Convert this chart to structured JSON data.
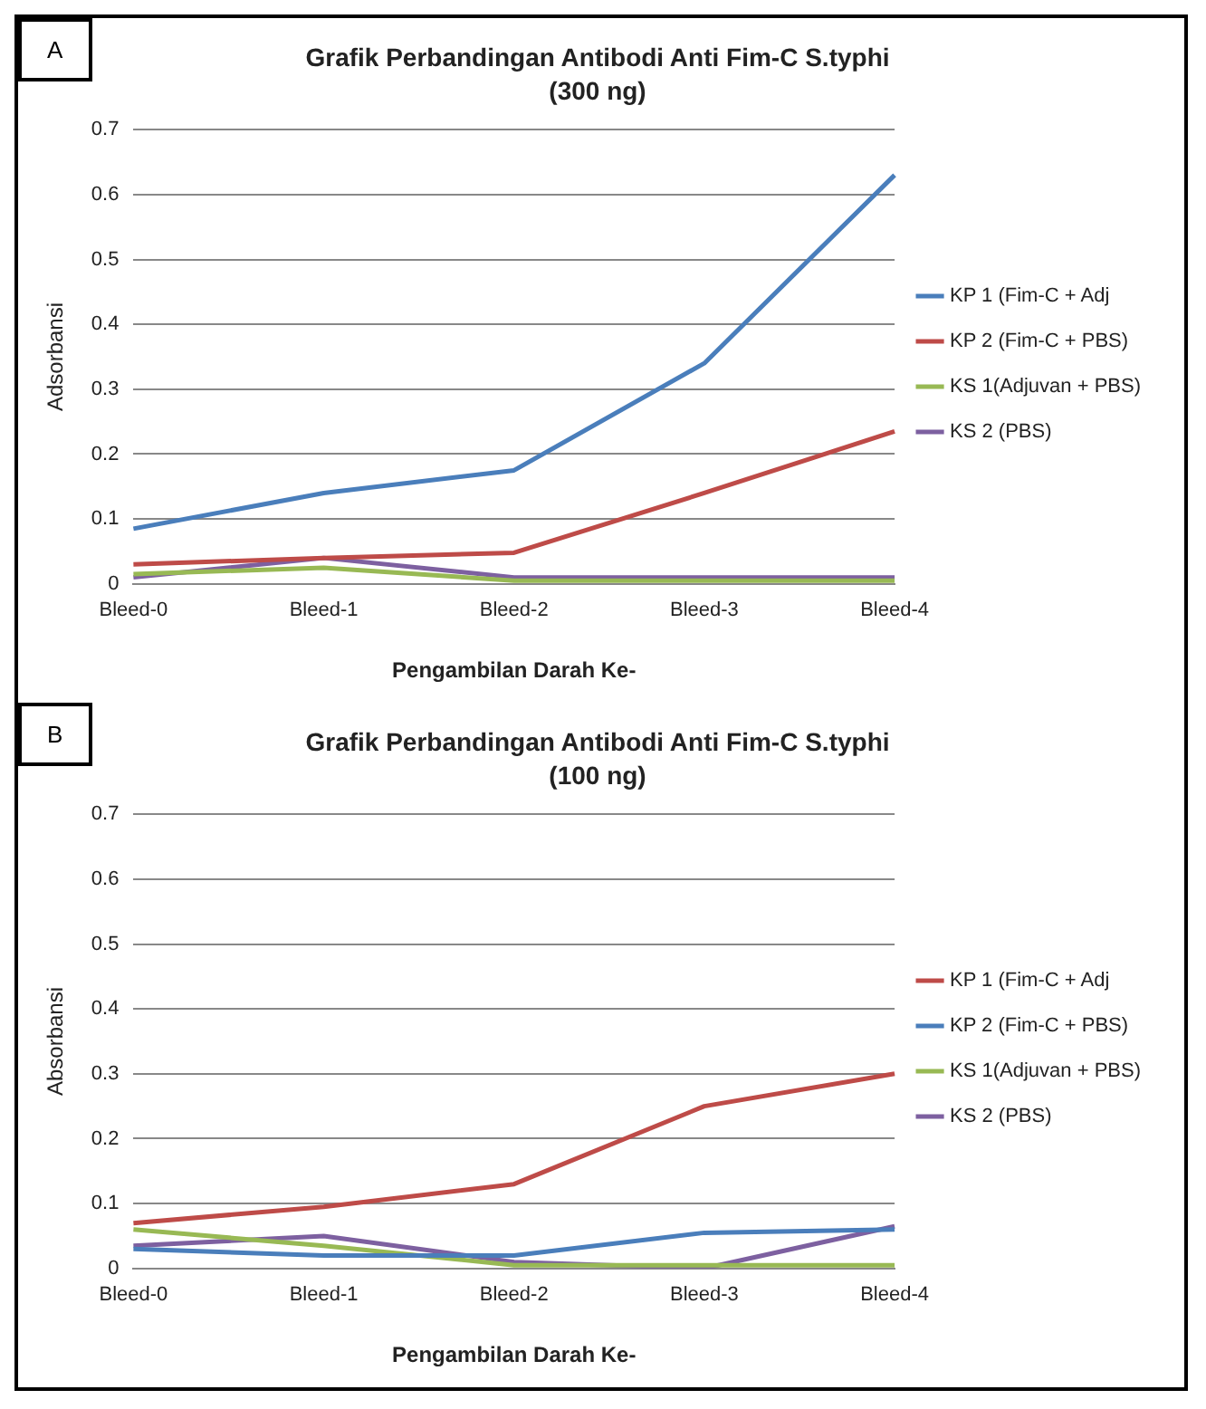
{
  "chart_data": [
    {
      "type": "line",
      "title": "Grafik Perbandingan Antibodi Anti Fim-C S.typhi",
      "subtitle": "(300 ng)",
      "xlabel": "Pengambilan Darah Ke-",
      "ylabel": "Adsorbansi",
      "annotations": [
        "A"
      ],
      "categories": [
        "Bleed-0",
        "Bleed-1",
        "Bleed-2",
        "Bleed-3",
        "Bleed-4"
      ],
      "series": [
        {
          "name": "KP 1 (Fim-C + Adj",
          "color": "#4a7ebb",
          "values": [
            0.085,
            0.14,
            0.175,
            0.34,
            0.63
          ]
        },
        {
          "name": "KP 2 (Fim-C + PBS)",
          "color": "#be4b48",
          "values": [
            0.03,
            0.04,
            0.048,
            0.14,
            0.235
          ]
        },
        {
          "name": "KS 1(Adjuvan + PBS)",
          "color": "#98b954",
          "values": [
            0.015,
            0.025,
            0.005,
            0.005,
            0.005
          ]
        },
        {
          "name": "KS 2 (PBS)",
          "color": "#7d60a0",
          "values": [
            0.01,
            0.04,
            0.01,
            0.01,
            0.01
          ]
        }
      ],
      "ylim": [
        0,
        0.7
      ],
      "yticks": [
        {
          "value": 0,
          "label": "0"
        },
        0.1,
        0.2,
        0.3,
        0.4,
        0.5,
        0.6,
        0.7
      ],
      "grid": "y",
      "legend": "right",
      "marker": "none",
      "line_style": "solid"
    },
    {
      "type": "line",
      "title": "Grafik Perbandingan Antibodi Anti Fim-C S.typhi",
      "subtitle": "(100 ng)",
      "xlabel": "Pengambilan Darah Ke-",
      "ylabel": "Absorbansi",
      "annotations": [
        "B"
      ],
      "categories": [
        "Bleed-0",
        "Bleed-1",
        "Bleed-2",
        "Bleed-3",
        "Bleed-4"
      ],
      "series": [
        {
          "name": "KP 1 (Fim-C + Adj",
          "color": "#be4b48",
          "values": [
            0.07,
            0.095,
            0.13,
            0.25,
            0.3
          ]
        },
        {
          "name": "KP 2 (Fim-C + PBS)",
          "color": "#4a7ebb",
          "values": [
            0.03,
            0.02,
            0.02,
            0.055,
            0.06
          ]
        },
        {
          "name": "KS 1(Adjuvan + PBS)",
          "color": "#98b954",
          "values": [
            0.06,
            0.035,
            0.005,
            0.005,
            0.005
          ]
        },
        {
          "name": "KS 2 (PBS)",
          "color": "#7d60a0",
          "values": [
            0.035,
            0.05,
            0.01,
            0.0,
            0.065
          ]
        }
      ],
      "ylim": [
        0,
        0.7
      ],
      "yticks": [
        {
          "value": 0,
          "label": "0"
        },
        0.1,
        0.2,
        0.3,
        0.4,
        0.5,
        0.6,
        0.7
      ],
      "grid": "y",
      "legend": "right",
      "marker": "none",
      "line_style": "solid"
    }
  ]
}
